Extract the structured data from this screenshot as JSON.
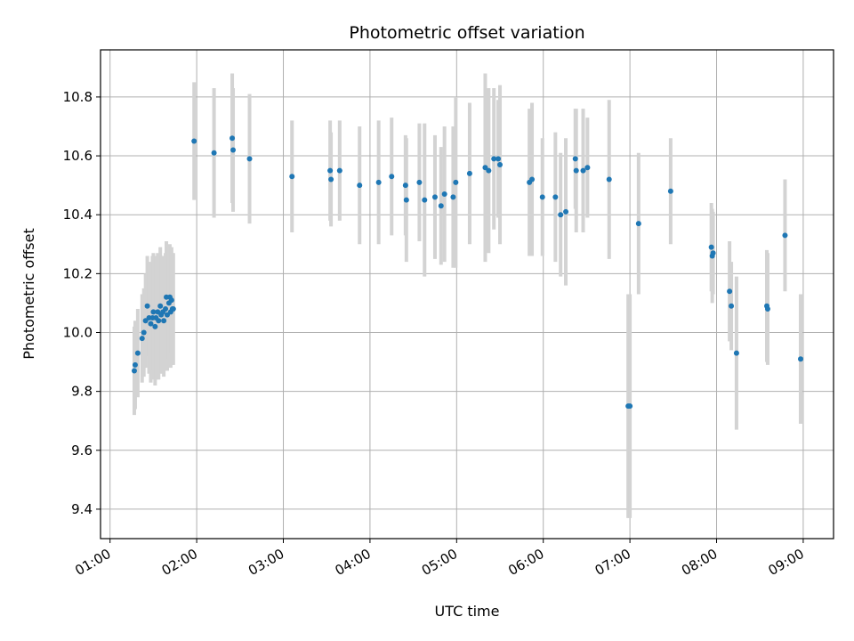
{
  "chart_data": {
    "type": "scatter",
    "title": "Photometric offset variation",
    "xlabel": "UTC time",
    "ylabel": "Photometric offset",
    "x_ticks": [
      "01:00",
      "02:00",
      "03:00",
      "04:00",
      "05:00",
      "06:00",
      "07:00",
      "08:00",
      "09:00"
    ],
    "y_ticks": [
      "9.4",
      "9.6",
      "9.8",
      "10.0",
      "10.2",
      "10.4",
      "10.6",
      "10.8"
    ],
    "x_tick_hours": [
      1,
      2,
      3,
      4,
      5,
      6,
      7,
      8,
      9
    ],
    "y_tick_values": [
      9.4,
      9.6,
      9.8,
      10.0,
      10.2,
      10.4,
      10.6,
      10.8
    ],
    "xlim_hours": [
      0.89,
      9.35
    ],
    "ylim": [
      9.3,
      10.96
    ],
    "grid": true,
    "colors": {
      "point": "#1f77b4",
      "errorbar": "#d3d3d3",
      "grid": "#b0b0b0"
    },
    "x_unit": "hours UTC",
    "points": [
      {
        "x": 1.28,
        "y": 9.87,
        "err": 0.15
      },
      {
        "x": 1.29,
        "y": 9.89,
        "err": 0.15
      },
      {
        "x": 1.32,
        "y": 9.93,
        "err": 0.15
      },
      {
        "x": 1.37,
        "y": 9.98,
        "err": 0.15
      },
      {
        "x": 1.39,
        "y": 10.0,
        "err": 0.15
      },
      {
        "x": 1.41,
        "y": 10.04,
        "err": 0.16
      },
      {
        "x": 1.43,
        "y": 10.09,
        "err": 0.17
      },
      {
        "x": 1.45,
        "y": 10.05,
        "err": 0.19
      },
      {
        "x": 1.47,
        "y": 10.03,
        "err": 0.2
      },
      {
        "x": 1.49,
        "y": 10.05,
        "err": 0.21
      },
      {
        "x": 1.5,
        "y": 10.07,
        "err": 0.2
      },
      {
        "x": 1.52,
        "y": 10.02,
        "err": 0.2
      },
      {
        "x": 1.53,
        "y": 10.05,
        "err": 0.21
      },
      {
        "x": 1.55,
        "y": 10.07,
        "err": 0.2
      },
      {
        "x": 1.56,
        "y": 10.04,
        "err": 0.2
      },
      {
        "x": 1.58,
        "y": 10.09,
        "err": 0.2
      },
      {
        "x": 1.59,
        "y": 10.06,
        "err": 0.2
      },
      {
        "x": 1.61,
        "y": 10.07,
        "err": 0.19
      },
      {
        "x": 1.62,
        "y": 10.04,
        "err": 0.19
      },
      {
        "x": 1.64,
        "y": 10.08,
        "err": 0.19
      },
      {
        "x": 1.65,
        "y": 10.12,
        "err": 0.19
      },
      {
        "x": 1.66,
        "y": 10.06,
        "err": 0.19
      },
      {
        "x": 1.68,
        "y": 10.1,
        "err": 0.19
      },
      {
        "x": 1.69,
        "y": 10.12,
        "err": 0.18
      },
      {
        "x": 1.7,
        "y": 10.07,
        "err": 0.19
      },
      {
        "x": 1.71,
        "y": 10.11,
        "err": 0.18
      },
      {
        "x": 1.72,
        "y": 10.08,
        "err": 0.19
      },
      {
        "x": 1.73,
        "y": 10.08,
        "err": 0.19
      },
      {
        "x": 1.97,
        "y": 10.65,
        "err": 0.2
      },
      {
        "x": 2.2,
        "y": 10.61,
        "err": 0.22
      },
      {
        "x": 2.41,
        "y": 10.66,
        "err": 0.22
      },
      {
        "x": 2.42,
        "y": 10.62,
        "err": 0.21
      },
      {
        "x": 2.61,
        "y": 10.59,
        "err": 0.22
      },
      {
        "x": 3.1,
        "y": 10.53,
        "err": 0.19
      },
      {
        "x": 3.54,
        "y": 10.55,
        "err": 0.17
      },
      {
        "x": 3.55,
        "y": 10.52,
        "err": 0.16
      },
      {
        "x": 3.65,
        "y": 10.55,
        "err": 0.17
      },
      {
        "x": 3.88,
        "y": 10.5,
        "err": 0.2
      },
      {
        "x": 4.1,
        "y": 10.51,
        "err": 0.21
      },
      {
        "x": 4.25,
        "y": 10.53,
        "err": 0.2
      },
      {
        "x": 4.41,
        "y": 10.5,
        "err": 0.17
      },
      {
        "x": 4.42,
        "y": 10.45,
        "err": 0.21
      },
      {
        "x": 4.57,
        "y": 10.51,
        "err": 0.2
      },
      {
        "x": 4.63,
        "y": 10.45,
        "err": 0.26
      },
      {
        "x": 4.75,
        "y": 10.46,
        "err": 0.21
      },
      {
        "x": 4.82,
        "y": 10.43,
        "err": 0.2
      },
      {
        "x": 4.86,
        "y": 10.47,
        "err": 0.23
      },
      {
        "x": 4.96,
        "y": 10.46,
        "err": 0.24
      },
      {
        "x": 4.99,
        "y": 10.51,
        "err": 0.29
      },
      {
        "x": 5.15,
        "y": 10.54,
        "err": 0.24
      },
      {
        "x": 5.33,
        "y": 10.56,
        "err": 0.32
      },
      {
        "x": 5.37,
        "y": 10.55,
        "err": 0.28
      },
      {
        "x": 5.43,
        "y": 10.59,
        "err": 0.24
      },
      {
        "x": 5.48,
        "y": 10.59,
        "err": 0.2
      },
      {
        "x": 5.5,
        "y": 10.57,
        "err": 0.27
      },
      {
        "x": 5.84,
        "y": 10.51,
        "err": 0.25
      },
      {
        "x": 5.87,
        "y": 10.52,
        "err": 0.26
      },
      {
        "x": 5.99,
        "y": 10.46,
        "err": 0.2
      },
      {
        "x": 6.14,
        "y": 10.46,
        "err": 0.22
      },
      {
        "x": 6.2,
        "y": 10.4,
        "err": 0.21
      },
      {
        "x": 6.26,
        "y": 10.41,
        "err": 0.25
      },
      {
        "x": 6.37,
        "y": 10.59,
        "err": 0.17
      },
      {
        "x": 6.38,
        "y": 10.55,
        "err": 0.21
      },
      {
        "x": 6.46,
        "y": 10.55,
        "err": 0.21
      },
      {
        "x": 6.51,
        "y": 10.56,
        "err": 0.17
      },
      {
        "x": 6.76,
        "y": 10.52,
        "err": 0.27
      },
      {
        "x": 6.98,
        "y": 9.75,
        "err": 0.38
      },
      {
        "x": 7.0,
        "y": 9.75,
        "err": 0.38
      },
      {
        "x": 7.1,
        "y": 10.37,
        "err": 0.24
      },
      {
        "x": 7.47,
        "y": 10.48,
        "err": 0.18
      },
      {
        "x": 7.94,
        "y": 10.29,
        "err": 0.15
      },
      {
        "x": 7.95,
        "y": 10.26,
        "err": 0.16
      },
      {
        "x": 7.96,
        "y": 10.27,
        "err": 0.14
      },
      {
        "x": 8.15,
        "y": 10.14,
        "err": 0.17
      },
      {
        "x": 8.17,
        "y": 10.09,
        "err": 0.15
      },
      {
        "x": 8.23,
        "y": 9.93,
        "err": 0.26
      },
      {
        "x": 8.58,
        "y": 10.09,
        "err": 0.19
      },
      {
        "x": 8.59,
        "y": 10.08,
        "err": 0.19
      },
      {
        "x": 8.79,
        "y": 10.33,
        "err": 0.19
      },
      {
        "x": 8.97,
        "y": 9.91,
        "err": 0.22
      }
    ]
  }
}
